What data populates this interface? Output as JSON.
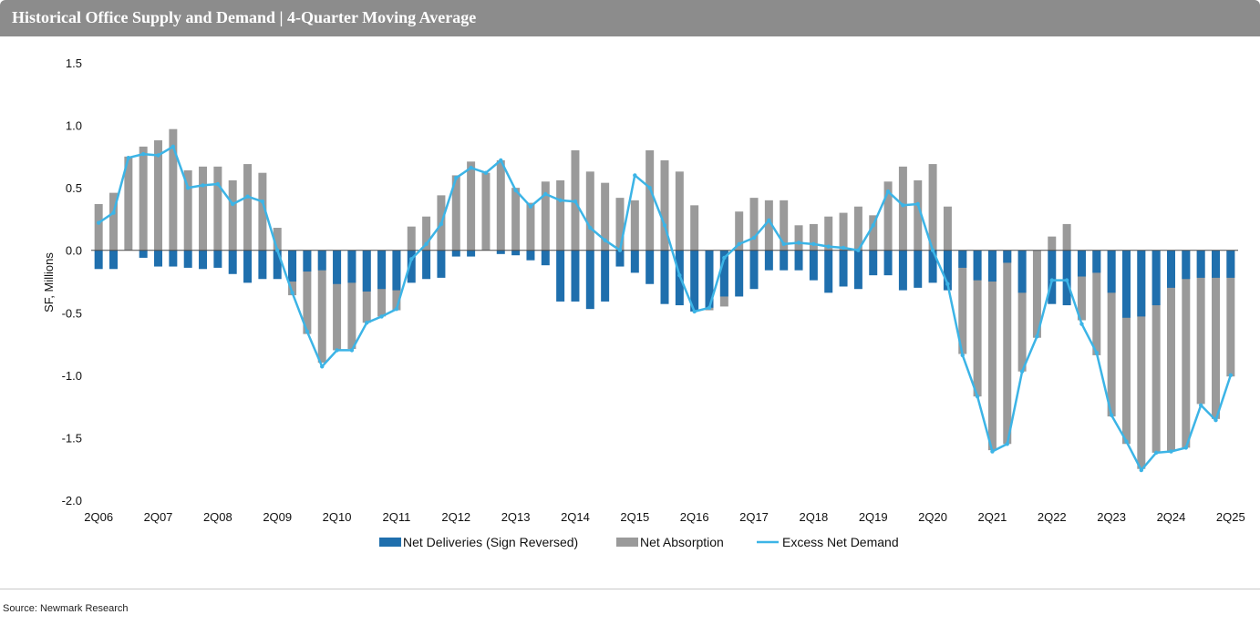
{
  "title": "Historical Office Supply and Demand | 4-Quarter Moving Average",
  "source": "Source: Newmark Research",
  "colors": {
    "deliveries": "#1f6fad",
    "absorption": "#9a9a9a",
    "excess": "#3cb4e6",
    "title_bg": "#8c8c8c"
  },
  "chart_data": {
    "type": "bar",
    "ylabel": "SF, Millions",
    "xlabel": "",
    "ylim": [
      -2.0,
      1.5
    ],
    "yticks": [
      "1.5",
      "1.0",
      "0.5",
      "0.0",
      "-0.5",
      "-1.0",
      "-1.5",
      "-2.0"
    ],
    "ytick_values": [
      1.5,
      1.0,
      0.5,
      0.0,
      -0.5,
      -1.0,
      -1.5,
      -2.0
    ],
    "grid": false,
    "legend_position": "bottom",
    "xticks": [
      "2Q06",
      "2Q07",
      "2Q08",
      "2Q09",
      "2Q10",
      "2Q11",
      "2Q12",
      "2Q13",
      "2Q14",
      "2Q15",
      "2Q16",
      "2Q17",
      "2Q18",
      "2Q19",
      "2Q20",
      "2Q21",
      "2Q22",
      "2Q23",
      "2Q24",
      "2Q25"
    ],
    "categories": [
      "2Q06",
      "3Q06",
      "4Q06",
      "1Q07",
      "2Q07",
      "3Q07",
      "4Q07",
      "1Q08",
      "2Q08",
      "3Q08",
      "4Q08",
      "1Q09",
      "2Q09",
      "3Q09",
      "4Q09",
      "1Q10",
      "2Q10",
      "3Q10",
      "4Q10",
      "1Q11",
      "2Q11",
      "3Q11",
      "4Q11",
      "1Q12",
      "2Q12",
      "3Q12",
      "4Q12",
      "1Q13",
      "2Q13",
      "3Q13",
      "4Q13",
      "1Q14",
      "2Q14",
      "3Q14",
      "4Q14",
      "1Q15",
      "2Q15",
      "3Q15",
      "4Q15",
      "1Q16",
      "2Q16",
      "3Q16",
      "4Q16",
      "1Q17",
      "2Q17",
      "3Q17",
      "4Q17",
      "1Q18",
      "2Q18",
      "3Q18",
      "4Q18",
      "1Q19",
      "2Q19",
      "3Q19",
      "4Q19",
      "1Q20",
      "2Q20",
      "3Q20",
      "4Q20",
      "1Q21",
      "2Q21",
      "3Q21",
      "4Q21",
      "1Q22",
      "2Q22",
      "3Q22",
      "4Q22",
      "1Q23",
      "2Q23",
      "3Q23",
      "4Q23",
      "1Q24",
      "2Q24",
      "3Q24",
      "4Q24",
      "1Q25",
      "2Q25"
    ],
    "series": [
      {
        "name": "Net Deliveries (Sign Reversed)",
        "type": "bar",
        "values": [
          -0.15,
          -0.15,
          0.0,
          -0.06,
          -0.13,
          -0.13,
          -0.14,
          -0.15,
          -0.14,
          -0.19,
          -0.26,
          -0.23,
          -0.23,
          -0.25,
          -0.17,
          -0.16,
          -0.27,
          -0.26,
          -0.33,
          -0.31,
          -0.32,
          -0.26,
          -0.23,
          -0.22,
          -0.05,
          -0.05,
          0.0,
          -0.03,
          -0.04,
          -0.08,
          -0.12,
          -0.41,
          -0.41,
          -0.47,
          -0.41,
          -0.13,
          -0.18,
          -0.27,
          -0.43,
          -0.44,
          -0.49,
          -0.46,
          -0.37,
          -0.37,
          -0.31,
          -0.16,
          -0.16,
          -0.16,
          -0.24,
          -0.34,
          -0.29,
          -0.31,
          -0.2,
          -0.2,
          -0.32,
          -0.3,
          -0.26,
          -0.32,
          -0.14,
          -0.24,
          -0.25,
          -0.1,
          -0.34,
          0.0,
          -0.43,
          -0.44,
          -0.21,
          -0.18,
          -0.34,
          -0.54,
          -0.53,
          -0.44,
          -0.3,
          -0.23,
          -0.22,
          -0.22,
          -0.22
        ]
      },
      {
        "name": "Net Absorption",
        "type": "bar",
        "values": [
          0.37,
          0.46,
          0.75,
          0.83,
          0.88,
          0.97,
          0.64,
          0.67,
          0.67,
          0.56,
          0.69,
          0.62,
          0.18,
          -0.36,
          -0.67,
          -0.9,
          -0.8,
          -0.79,
          -0.58,
          -0.53,
          -0.48,
          0.19,
          0.27,
          0.44,
          0.6,
          0.71,
          0.62,
          0.72,
          0.5,
          0.38,
          0.55,
          0.56,
          0.8,
          0.63,
          0.54,
          0.42,
          0.4,
          0.8,
          0.72,
          0.63,
          0.36,
          -0.48,
          -0.45,
          0.31,
          0.42,
          0.4,
          0.4,
          0.2,
          0.21,
          0.27,
          0.3,
          0.35,
          0.28,
          0.55,
          0.67,
          0.56,
          0.69,
          0.35,
          -0.83,
          -1.17,
          -1.6,
          -1.55,
          -0.97,
          -0.7,
          0.11,
          0.21,
          -0.56,
          -0.84,
          -1.33,
          -1.55,
          -1.75,
          -1.62,
          -1.61,
          -1.58,
          -1.23,
          -1.35,
          -1.01
        ]
      },
      {
        "name": "Excess Net Demand",
        "type": "line",
        "values": [
          0.22,
          0.3,
          0.74,
          0.77,
          0.76,
          0.83,
          0.5,
          0.52,
          0.53,
          0.37,
          0.43,
          0.39,
          0.0,
          -0.34,
          -0.65,
          -0.93,
          -0.8,
          -0.8,
          -0.58,
          -0.53,
          -0.47,
          -0.07,
          0.05,
          0.21,
          0.58,
          0.66,
          0.62,
          0.72,
          0.48,
          0.35,
          0.45,
          0.4,
          0.39,
          0.18,
          0.08,
          0.0,
          0.6,
          0.5,
          0.2,
          -0.2,
          -0.49,
          -0.46,
          -0.06,
          0.05,
          0.1,
          0.24,
          0.05,
          0.06,
          0.05,
          0.03,
          0.02,
          0.0,
          0.2,
          0.47,
          0.36,
          0.37,
          0.0,
          -0.27,
          -0.84,
          -1.17,
          -1.61,
          -1.55,
          -0.97,
          -0.69,
          -0.24,
          -0.24,
          -0.59,
          -0.82,
          -1.32,
          -1.53,
          -1.76,
          -1.62,
          -1.61,
          -1.58,
          -1.24,
          -1.36,
          -1.0
        ]
      }
    ]
  }
}
